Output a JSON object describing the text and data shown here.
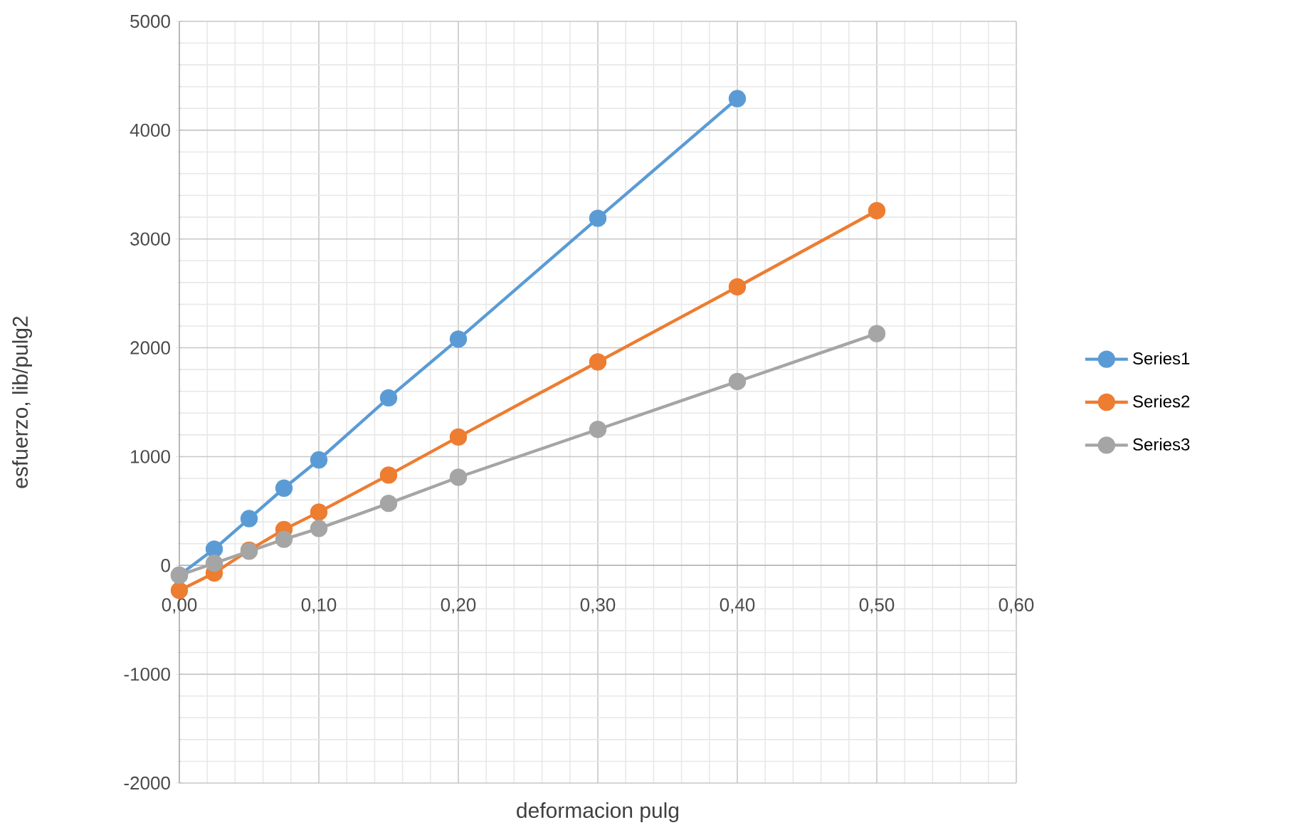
{
  "chart_data": {
    "type": "line",
    "xlabel": "deformacion pulg",
    "ylabel": "esfuerzo, lib/pulg2",
    "x": [
      0,
      0.025,
      0.05,
      0.075,
      0.1,
      0.15,
      0.2,
      0.3,
      0.4,
      0.5
    ],
    "series": [
      {
        "name": "Series1",
        "color": "#5b9bd5",
        "values": [
          -90,
          150,
          430,
          710,
          970,
          1540,
          2080,
          3190,
          4290,
          null
        ]
      },
      {
        "name": "Series2",
        "color": "#ed7d31",
        "values": [
          -230,
          -70,
          140,
          330,
          490,
          830,
          1180,
          1870,
          2560,
          3260
        ]
      },
      {
        "name": "Series3",
        "color": "#a5a5a5",
        "values": [
          -90,
          20,
          130,
          240,
          340,
          570,
          810,
          1250,
          1690,
          2130
        ]
      }
    ],
    "xlim": [
      0,
      0.6
    ],
    "ylim": [
      -2000,
      5000
    ],
    "xticks": [
      {
        "value": 0,
        "label": "0,00"
      },
      {
        "value": 0.1,
        "label": "0,10"
      },
      {
        "value": 0.2,
        "label": "0,20"
      },
      {
        "value": 0.3,
        "label": "0,30"
      },
      {
        "value": 0.4,
        "label": "0,40"
      },
      {
        "value": 0.5,
        "label": "0,50"
      },
      {
        "value": 0.6,
        "label": "0,60"
      }
    ],
    "yticks": [
      -2000,
      -1000,
      0,
      1000,
      2000,
      3000,
      4000,
      5000
    ],
    "grid": true,
    "legend": "right",
    "marker": "circle",
    "line_style": "solid"
  }
}
